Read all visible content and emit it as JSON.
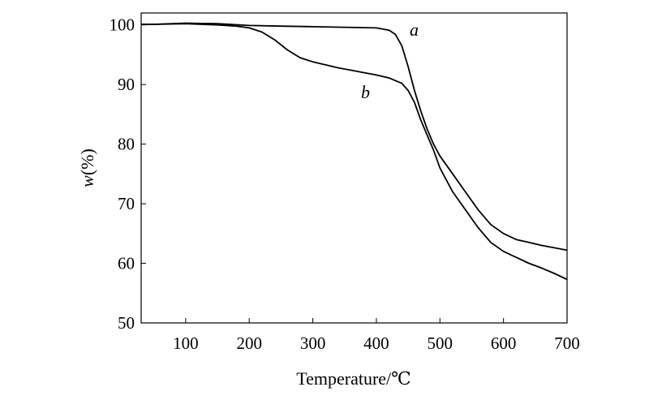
{
  "chart_data": {
    "type": "line",
    "xlabel": "Temperature/℃",
    "ylabel_var": "w",
    "ylabel_unit": "(%)",
    "xlim": [
      30,
      700
    ],
    "ylim": [
      50,
      102
    ],
    "xticks": [
      100,
      200,
      300,
      400,
      500,
      600,
      700
    ],
    "yticks": [
      50,
      60,
      70,
      80,
      90,
      100
    ],
    "grid": false,
    "series": [
      {
        "name": "a",
        "x": [
          30,
          50,
          100,
          150,
          200,
          250,
          300,
          350,
          400,
          420,
          430,
          440,
          450,
          460,
          470,
          480,
          490,
          500,
          520,
          540,
          560,
          580,
          600,
          620,
          640,
          660,
          680,
          700
        ],
        "y": [
          100.1,
          100.1,
          100.3,
          100.2,
          99.9,
          99.8,
          99.7,
          99.6,
          99.5,
          99.1,
          98.4,
          96.5,
          93.0,
          89.0,
          85.5,
          82.5,
          80.0,
          78.0,
          75.0,
          72.0,
          69.0,
          66.5,
          65.0,
          64.0,
          63.5,
          63.0,
          62.6,
          62.2
        ]
      },
      {
        "name": "b",
        "x": [
          30,
          50,
          100,
          150,
          180,
          200,
          220,
          240,
          260,
          280,
          300,
          320,
          340,
          360,
          380,
          400,
          420,
          440,
          450,
          460,
          470,
          480,
          490,
          500,
          520,
          540,
          560,
          580,
          600,
          620,
          640,
          660,
          680,
          700
        ],
        "y": [
          100.1,
          100.1,
          100.2,
          100.0,
          99.8,
          99.5,
          98.8,
          97.5,
          95.8,
          94.5,
          93.8,
          93.3,
          92.8,
          92.4,
          92.0,
          91.6,
          91.1,
          90.2,
          89.0,
          87.0,
          84.0,
          81.5,
          79.0,
          76.0,
          72.0,
          69.0,
          66.0,
          63.5,
          62.0,
          61.0,
          60.0,
          59.2,
          58.3,
          57.3
        ]
      }
    ]
  }
}
